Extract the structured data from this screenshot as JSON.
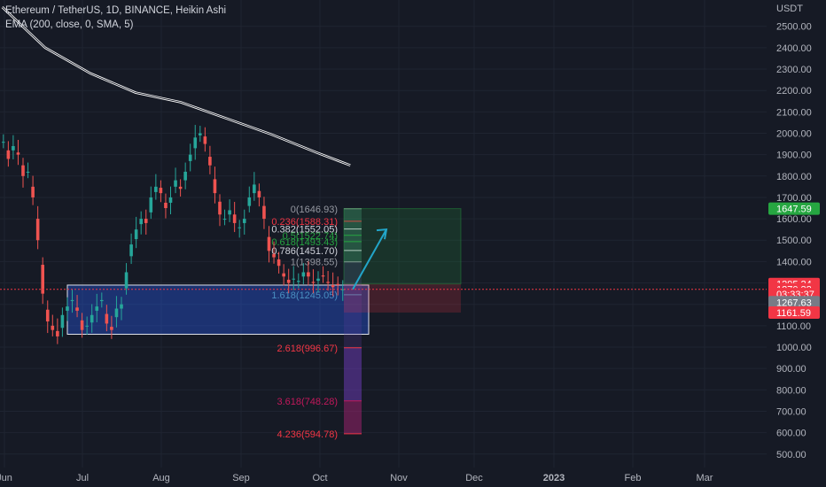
{
  "header": {
    "symbol_line": "Ethereum / TetherUS, 1D, BINANCE, Heikin Ashi",
    "indicator_line": "EMA (200, close, 0, SMA, 5)"
  },
  "price_axis": {
    "unit": "USDT",
    "ticks": [
      "2500.00",
      "2400.00",
      "2300.00",
      "2200.00",
      "2100.00",
      "2000.00",
      "1900.00",
      "1800.00",
      "1700.00",
      "1600.00",
      "1500.00",
      "1400.00",
      "1300.00",
      "1200.00",
      "1100.00",
      "1000.00",
      "900.00",
      "800.00",
      "700.00",
      "600.00",
      "500.00"
    ],
    "badges": [
      {
        "text": "1647.59",
        "value": 1647.59,
        "color": "#26a641"
      },
      {
        "text": "1295.24",
        "value": 1295.24,
        "color": "#f23645"
      },
      {
        "text": "1270.32",
        "value": 1270.32,
        "color": "#f23645"
      },
      {
        "text": "03:33:37",
        "value": 1248,
        "color": "#f23645"
      },
      {
        "text": "1267.63",
        "value": 1210,
        "color": "#787b86"
      },
      {
        "text": "1161.59",
        "value": 1161.59,
        "color": "#f23645"
      }
    ]
  },
  "time_axis": {
    "labels": [
      "Jun",
      "Jul",
      "Aug",
      "Sep",
      "Oct",
      "Nov",
      "Dec",
      "2023",
      "Feb",
      "Mar"
    ]
  },
  "fib_levels": [
    {
      "text": "0(1646.93)",
      "value": 1646.93,
      "color": "#9598a1"
    },
    {
      "text": "0.236(1588.31)",
      "value": 1588.31,
      "color": "#f23645"
    },
    {
      "text": "0.382(1552.05)",
      "value": 1552.05,
      "color": "#d1d4dc"
    },
    {
      "text": "0.5(1522.74)",
      "value": 1522.74,
      "color": "#26a641"
    },
    {
      "text": "0.618(1493.43)",
      "value": 1493.43,
      "color": "#26a641"
    },
    {
      "text": "0.786(1451.70)",
      "value": 1451.7,
      "color": "#d1d4dc"
    },
    {
      "text": "1(1398.55)",
      "value": 1398.55,
      "color": "#9598a1"
    },
    {
      "text": "1.618(1245.05)",
      "value": 1245.05,
      "color": "#4a90c2"
    },
    {
      "text": "2.618(996.67)",
      "value": 996.67,
      "color": "#f23645"
    },
    {
      "text": "3.618(748.28)",
      "value": 748.28,
      "color": "#c2185b"
    },
    {
      "text": "4.236(594.78)",
      "value": 594.78,
      "color": "#f23645"
    }
  ],
  "chart_data": {
    "type": "candlestick",
    "title": "Ethereum / TetherUS, 1D, BINANCE, Heikin Ashi",
    "y_unit": "USDT",
    "ylim": [
      470,
      2590
    ],
    "x_labels": [
      "Jun",
      "Jul",
      "Aug",
      "Sep",
      "Oct",
      "Nov",
      "Dec",
      "2023",
      "Feb",
      "Mar"
    ],
    "candle_closes": [
      1960,
      1880,
      1940,
      1900,
      1800,
      1820,
      1700,
      1500,
      1250,
      1120,
      1080,
      1050,
      1150,
      1190,
      1220,
      1170,
      1080,
      1100,
      1150,
      1190,
      1220,
      1110,
      1080,
      1180,
      1200,
      1350,
      1480,
      1550,
      1600,
      1580,
      1700,
      1750,
      1720,
      1650,
      1700,
      1780,
      1740,
      1820,
      1900,
      1980,
      2000,
      1950,
      1850,
      1720,
      1620,
      1600,
      1640,
      1580,
      1560,
      1600,
      1700,
      1760,
      1700,
      1600,
      1450,
      1420,
      1380,
      1330,
      1300,
      1320,
      1310,
      1350,
      1330,
      1300,
      1320,
      1330,
      1300,
      1280,
      1290,
      1270
    ],
    "ema_200": [
      [
        1,
        2590
      ],
      [
        20,
        2400
      ],
      [
        40,
        2280
      ],
      [
        60,
        2190
      ],
      [
        80,
        2145
      ],
      [
        100,
        2070
      ],
      [
        120,
        1995
      ],
      [
        140,
        1910
      ],
      [
        155,
        1850
      ]
    ],
    "zone": {
      "top": 1290,
      "bottom": 1060
    },
    "long_position": {
      "entry": 1295.24,
      "target": 1647.59,
      "stop": 1161.59
    },
    "arrow": {
      "from": 1270,
      "to": 1550
    }
  }
}
